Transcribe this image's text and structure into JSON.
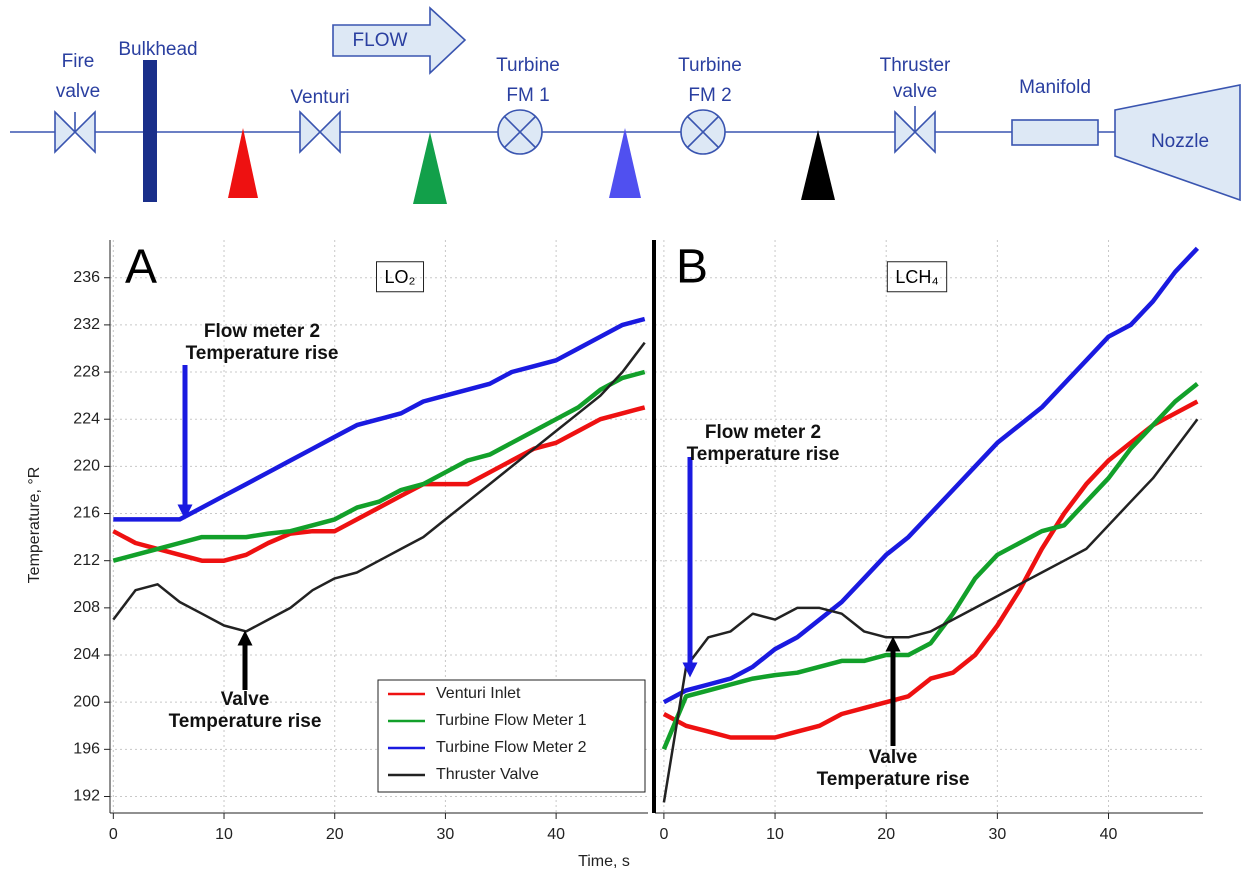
{
  "diagram": {
    "fire_valve": [
      "Fire",
      "valve"
    ],
    "bulkhead": "Bulkhead",
    "venturi": "Venturi",
    "flow": "FLOW",
    "turbine_fm1": [
      "Turbine",
      "FM 1"
    ],
    "turbine_fm2": [
      "Turbine",
      "FM 2"
    ],
    "thruster_valve": [
      "Thruster",
      "valve"
    ],
    "manifold": "Manifold",
    "nozzle": "Nozzle"
  },
  "axes": {
    "y_label": "Temperature, °R",
    "x_label": "Time, s"
  },
  "chart_data": [
    {
      "type": "line",
      "panel": "A",
      "subtitle": "LO₂",
      "x": [
        0,
        2,
        4,
        6,
        8,
        10,
        12,
        14,
        16,
        18,
        20,
        22,
        24,
        26,
        28,
        30,
        32,
        34,
        36,
        38,
        40,
        42,
        44,
        46,
        48
      ],
      "series": [
        {
          "name": "Venturi Inlet",
          "color": "#ee1111",
          "values": [
            214.5,
            213.5,
            213,
            212.5,
            212,
            212,
            212.5,
            213.5,
            214.3,
            214.5,
            214.5,
            215.5,
            216.5,
            217.5,
            218.5,
            218.5,
            218.5,
            219.5,
            220.5,
            221.5,
            222,
            223,
            224,
            224.5,
            225
          ]
        },
        {
          "name": "Turbine Flow Meter 1",
          "color": "#12a02a",
          "values": [
            212,
            212.5,
            213,
            213.5,
            214,
            214,
            214,
            214.3,
            214.5,
            215,
            215.5,
            216.5,
            217,
            218,
            218.5,
            219.5,
            220.5,
            221,
            222,
            223,
            224,
            225,
            226.5,
            227.5,
            228
          ]
        },
        {
          "name": "Turbine Flow Meter 2",
          "color": "#1a1ae0",
          "values": [
            215.5,
            215.5,
            215.5,
            215.5,
            216.5,
            217.5,
            218.5,
            219.5,
            220.5,
            221.5,
            222.5,
            223.5,
            224,
            224.5,
            225.5,
            226,
            226.5,
            227,
            228,
            228.5,
            229,
            230,
            231,
            232,
            232.5
          ]
        },
        {
          "name": "Thruster Valve",
          "color": "#222222",
          "values": [
            207,
            209.5,
            210,
            208.5,
            207.5,
            206.5,
            206,
            207,
            208,
            209.5,
            210.5,
            211,
            212,
            213,
            214,
            215.5,
            217,
            218.5,
            220,
            221.5,
            223,
            224.5,
            226,
            228,
            230.5
          ]
        }
      ],
      "xlim": [
        -0.3,
        48.3
      ],
      "ylim": [
        190.6,
        239.2
      ],
      "xticks": [
        0,
        10,
        20,
        30,
        40
      ],
      "yticks": [
        192,
        196,
        200,
        204,
        208,
        212,
        216,
        220,
        224,
        228,
        232,
        236
      ],
      "grid": true,
      "legend": "lower right",
      "annotations": [
        {
          "lines": [
            "Flow meter 2",
            "Temperature rise"
          ],
          "color": "#1a1ae0"
        },
        {
          "lines": [
            "Valve",
            "Temperature rise"
          ],
          "color": "#000000"
        }
      ]
    },
    {
      "type": "line",
      "panel": "B",
      "subtitle": "LCH₄",
      "x": [
        0,
        2,
        4,
        6,
        8,
        10,
        12,
        14,
        16,
        18,
        20,
        22,
        24,
        26,
        28,
        30,
        32,
        34,
        36,
        38,
        40,
        42,
        44,
        46,
        48
      ],
      "series": [
        {
          "color": "#ee1111",
          "values": [
            199,
            198,
            197.5,
            197,
            197,
            197,
            197.5,
            198,
            199,
            199.5,
            200,
            200.5,
            202,
            202.5,
            204,
            206.5,
            209.5,
            213,
            216,
            218.5,
            220.5,
            222,
            223.5,
            224.5,
            225.5
          ]
        },
        {
          "color": "#12a02a",
          "values": [
            196,
            200.5,
            201,
            201.5,
            202,
            202.3,
            202.5,
            203,
            203.5,
            203.5,
            204,
            204,
            205,
            207.5,
            210.5,
            212.5,
            213.5,
            214.5,
            215,
            217,
            219,
            221.5,
            223.5,
            225.5,
            227
          ]
        },
        {
          "color": "#1a1ae0",
          "values": [
            200,
            201,
            201.5,
            202,
            203,
            204.5,
            205.5,
            207,
            208.5,
            210.5,
            212.5,
            214,
            216,
            218,
            220,
            222,
            223.5,
            225,
            227,
            229,
            231,
            232,
            234,
            236.5,
            238.5
          ]
        },
        {
          "color": "#222222",
          "values": [
            191.5,
            203,
            205.5,
            206,
            207.5,
            207,
            208,
            208,
            207.5,
            206,
            205.5,
            205.5,
            206,
            207,
            208,
            209,
            210,
            211,
            212,
            213,
            215,
            217,
            219,
            221.5,
            224
          ]
        }
      ],
      "xlim": [
        -0.8,
        48.5
      ],
      "ylim": [
        190.6,
        239.2
      ],
      "xticks": [
        0,
        10,
        20,
        30,
        40
      ],
      "grid": true,
      "annotations": [
        {
          "lines": [
            "Flow meter 2",
            "Temperature rise"
          ],
          "color": "#1a1ae0"
        },
        {
          "lines": [
            "Valve",
            "Temperature rise"
          ],
          "color": "#000000"
        }
      ]
    }
  ]
}
